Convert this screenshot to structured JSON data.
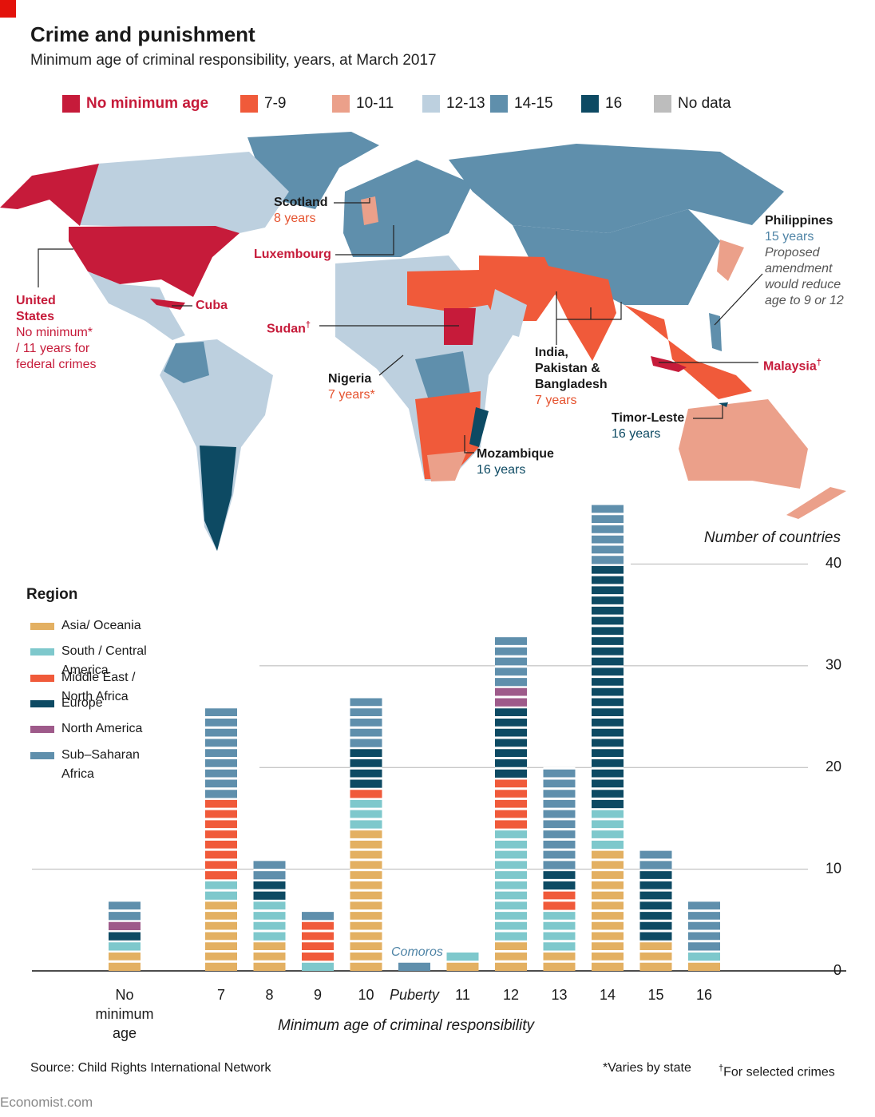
{
  "title": "Crime and punishment",
  "subtitle": "Minimum age of criminal responsibility, years, at March 2017",
  "map": {
    "legend": [
      {
        "label": "No minimum age",
        "color": "#c61b3a"
      },
      {
        "label": "7-9",
        "color": "#f05a3a"
      },
      {
        "label": "10-11",
        "color": "#eba08a"
      },
      {
        "label": "12-13",
        "color": "#bdd0df"
      },
      {
        "label": "14-15",
        "color": "#5f8fac"
      },
      {
        "label": "16",
        "color": "#0d4a63"
      },
      {
        "label": "No data",
        "color": "#bdbdbd"
      }
    ],
    "annotations": [
      {
        "label": [
          "Scotland"
        ],
        "note": [
          "8 years"
        ]
      },
      {
        "label": [
          "Luxembourg"
        ]
      },
      {
        "label": [
          "United",
          "States"
        ],
        "note": [
          "No minimum*",
          "/ 11 years for",
          "federal crimes"
        ]
      },
      {
        "label": [
          "Cuba"
        ]
      },
      {
        "label": [
          "Sudan"
        ],
        "mark": "†"
      },
      {
        "label": [
          "Nigeria"
        ],
        "note": [
          "7 years*"
        ]
      },
      {
        "label": [
          "India,",
          "Pakistan &",
          "Bangladesh"
        ],
        "note": [
          "7 years"
        ]
      },
      {
        "label": [
          "Mozambique"
        ],
        "note": [
          "16 years"
        ]
      },
      {
        "label": [
          "Timor-Leste"
        ],
        "note": [
          "16 years"
        ]
      },
      {
        "label": [
          "Malaysia"
        ],
        "mark": "†"
      },
      {
        "label": [
          "Philippines"
        ],
        "note": [
          "15 years"
        ],
        "detail": [
          "Proposed",
          "amendment",
          "would reduce",
          "age to 9 or 12"
        ]
      }
    ]
  },
  "chart_data": {
    "type": "stacked-bar",
    "legend_title": "Region",
    "y_label": "Number of countries",
    "x_label": "Minimum age of criminal responsibility",
    "annotation": "Comoros",
    "categories": [
      "No minimum age",
      "7",
      "8",
      "9",
      "10",
      "Puberty",
      "11",
      "12",
      "13",
      "14",
      "15",
      "16"
    ],
    "series": [
      {
        "name": "Asia/ Oceania",
        "color": "#e3b062",
        "values": [
          2,
          7,
          3,
          0,
          14,
          0,
          1,
          3,
          2,
          12,
          3,
          1
        ]
      },
      {
        "name": "South / Central America",
        "color": "#7ec8cc",
        "values": [
          1,
          2,
          4,
          1,
          3,
          0,
          1,
          11,
          4,
          4,
          0,
          1
        ]
      },
      {
        "name": "Middle East / North Africa",
        "color": "#f05a3a",
        "values": [
          0,
          8,
          0,
          4,
          1,
          0,
          0,
          5,
          2,
          0,
          0,
          0
        ]
      },
      {
        "name": "Europe",
        "color": "#0d4a63",
        "values": [
          1,
          0,
          2,
          0,
          4,
          0,
          0,
          7,
          2,
          24,
          7,
          0
        ]
      },
      {
        "name": "North America",
        "color": "#9e5a8a",
        "values": [
          1,
          0,
          0,
          0,
          0,
          0,
          0,
          2,
          0,
          0,
          0,
          0
        ]
      },
      {
        "name": "Sub–Saharan Africa",
        "color": "#5f8fac",
        "values": [
          2,
          9,
          2,
          1,
          5,
          1,
          0,
          5,
          10,
          6,
          2,
          5
        ]
      }
    ],
    "ylim": [
      0,
      46
    ],
    "yticks": [
      0,
      10,
      20,
      30,
      40
    ],
    "grid": true
  },
  "footer": {
    "source": "Source: Child Rights International Network",
    "note1": "*Varies by state",
    "note2_mark": "†",
    "note2": "For selected crimes",
    "brand": "Economist.com"
  }
}
